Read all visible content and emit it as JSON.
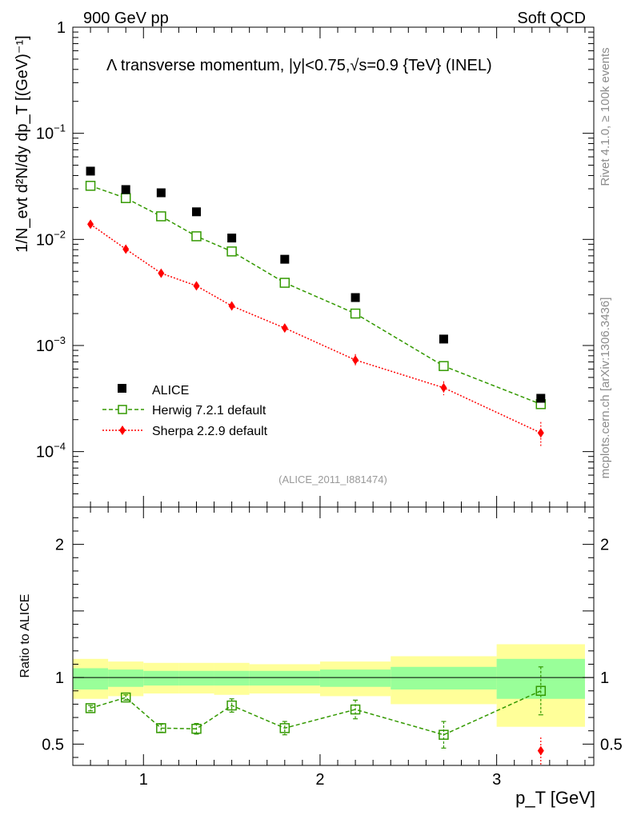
{
  "chart_data": [
    {
      "type": "scatter",
      "panel": "main",
      "title": "Λ transverse momentum, |y|<0.75,√s=0.9 {TeV} (INEL)",
      "header_left": "900 GeV pp",
      "header_right": "Soft QCD",
      "analysis_label": "(ALICE_2011_I881474)",
      "ylabel": "1/N_evt d²N/dy dp_T [(GeV)⁻¹]",
      "yscale": "log",
      "ylim": [
        3e-05,
        1
      ],
      "y_ticks": [
        {
          "value": 1,
          "base": "1",
          "exp": ""
        },
        {
          "value": 0.1,
          "base": "10",
          "exp": "−1"
        },
        {
          "value": 0.01,
          "base": "10",
          "exp": "−2"
        },
        {
          "value": 0.001,
          "base": "10",
          "exp": "−3"
        },
        {
          "value": 0.0001,
          "base": "10",
          "exp": "−4"
        }
      ],
      "xlim": [
        0.6,
        3.55
      ],
      "legend_position": "bottom-left",
      "series": [
        {
          "name": "ALICE",
          "style": "data",
          "color": "#000000",
          "x": [
            0.7,
            0.9,
            1.1,
            1.3,
            1.5,
            1.8,
            2.2,
            2.7,
            3.25
          ],
          "y": [
            0.044,
            0.0295,
            0.0275,
            0.0182,
            0.0103,
            0.0065,
            0.00283,
            0.00115,
            0.000318
          ]
        },
        {
          "name": "Herwig 7.2.1 default",
          "style": "open-square-dashed",
          "color": "#339900",
          "x": [
            0.7,
            0.9,
            1.1,
            1.3,
            1.5,
            1.8,
            2.2,
            2.7,
            3.25
          ],
          "y": [
            0.032,
            0.0245,
            0.0165,
            0.0107,
            0.0077,
            0.0039,
            0.002,
            0.00064,
            0.00028
          ],
          "err": [
            0.0006,
            0.0005,
            0.0004,
            0.0003,
            0.0002,
            0.00012,
            8e-05,
            5e-05,
            4e-05
          ]
        },
        {
          "name": "Sherpa 2.2.9 default",
          "style": "diamond-dotted",
          "color": "#ff0000",
          "x": [
            0.7,
            0.9,
            1.1,
            1.3,
            1.5,
            1.8,
            2.2,
            2.7,
            3.25
          ],
          "y": [
            0.0139,
            0.0081,
            0.0048,
            0.00365,
            0.00236,
            0.00146,
            0.00073,
            0.0004,
            0.00015
          ],
          "err": [
            0.0004,
            0.0003,
            0.0002,
            0.00025,
            0.0002,
            0.00012,
            0.0001,
            6e-05,
            4e-05
          ]
        }
      ]
    },
    {
      "type": "scatter",
      "panel": "ratio",
      "ylabel": "Ratio to ALICE",
      "xlabel": "p_T [GeV]",
      "ylim": [
        0.34,
        2.28
      ],
      "xlim": [
        0.6,
        3.55
      ],
      "y_ticks": [
        "0.5",
        "1",
        "2"
      ],
      "x_ticks": [
        "1",
        "2",
        "3"
      ],
      "bands": [
        {
          "x0": 0.6,
          "x1": 0.8,
          "inner": [
            0.91,
            1.07
          ],
          "outer": [
            0.84,
            1.14
          ]
        },
        {
          "x0": 0.8,
          "x1": 1.0,
          "inner": [
            0.93,
            1.06
          ],
          "outer": [
            0.86,
            1.12
          ]
        },
        {
          "x0": 1.0,
          "x1": 1.2,
          "inner": [
            0.94,
            1.05
          ],
          "outer": [
            0.88,
            1.11
          ]
        },
        {
          "x0": 1.2,
          "x1": 1.4,
          "inner": [
            0.94,
            1.05
          ],
          "outer": [
            0.88,
            1.11
          ]
        },
        {
          "x0": 1.4,
          "x1": 1.6,
          "inner": [
            0.94,
            1.05
          ],
          "outer": [
            0.87,
            1.11
          ]
        },
        {
          "x0": 1.6,
          "x1": 2.0,
          "inner": [
            0.94,
            1.05
          ],
          "outer": [
            0.88,
            1.1
          ]
        },
        {
          "x0": 2.0,
          "x1": 2.4,
          "inner": [
            0.93,
            1.06
          ],
          "outer": [
            0.86,
            1.12
          ]
        },
        {
          "x0": 2.4,
          "x1": 3.0,
          "inner": [
            0.91,
            1.08
          ],
          "outer": [
            0.8,
            1.16
          ]
        },
        {
          "x0": 3.0,
          "x1": 3.5,
          "inner": [
            0.84,
            1.14
          ],
          "outer": [
            0.63,
            1.25
          ]
        }
      ],
      "series": [
        {
          "name": "Herwig 7.2.1 default",
          "color": "#339900",
          "x": [
            0.7,
            0.9,
            1.1,
            1.3,
            1.5,
            1.8,
            2.2,
            2.7,
            3.25
          ],
          "y": [
            0.77,
            0.85,
            0.62,
            0.615,
            0.79,
            0.62,
            0.76,
            0.57,
            0.9
          ],
          "err": [
            0.02,
            0.02,
            0.03,
            0.04,
            0.05,
            0.05,
            0.07,
            0.1,
            0.18
          ]
        },
        {
          "name": "Sherpa 2.2.9 default",
          "color": "#ff0000",
          "x": [
            3.25
          ],
          "y": [
            0.45
          ],
          "err": [
            0.1
          ]
        }
      ],
      "colors": {
        "inner_band": "#99ff99",
        "outer_band": "#ffff99",
        "herwig": "#339900",
        "sherpa": "#ff0000"
      }
    }
  ],
  "side_labels": {
    "rivet": "Rivet 4.1.0, ≥ 100k events",
    "mcplots": "mcplots.cern.ch [arXiv:1306.3436]"
  }
}
